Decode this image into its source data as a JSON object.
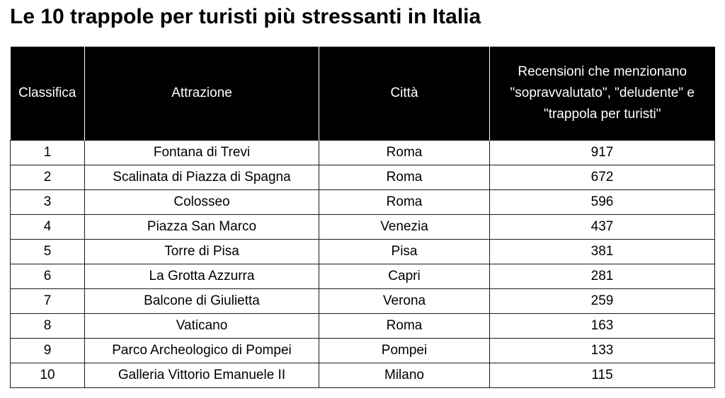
{
  "title": "Le 10 trappole per turisti più stressanti in Italia",
  "table": {
    "headers": {
      "rank": "Classifica",
      "attraction": "Attrazione",
      "city": "Città",
      "reviews_line1": "Recensioni che menzionano",
      "reviews_line2": "\"sopravvalutato\", \"deludente\" e",
      "reviews_line3": "\"trappola per turisti\""
    },
    "rows": [
      {
        "rank": "1",
        "attraction": "Fontana di Trevi",
        "city": "Roma",
        "reviews": "917"
      },
      {
        "rank": "2",
        "attraction": "Scalinata di Piazza di Spagna",
        "city": "Roma",
        "reviews": "672"
      },
      {
        "rank": "3",
        "attraction": "Colosseo",
        "city": "Roma",
        "reviews": "596"
      },
      {
        "rank": "4",
        "attraction": "Piazza San Marco",
        "city": "Venezia",
        "reviews": "437"
      },
      {
        "rank": "5",
        "attraction": "Torre di Pisa",
        "city": "Pisa",
        "reviews": "381"
      },
      {
        "rank": "6",
        "attraction": "La Grotta Azzurra",
        "city": "Capri",
        "reviews": "281"
      },
      {
        "rank": "7",
        "attraction": "Balcone di Giulietta",
        "city": "Verona",
        "reviews": "259"
      },
      {
        "rank": "8",
        "attraction": "Vaticano",
        "city": "Roma",
        "reviews": "163"
      },
      {
        "rank": "9",
        "attraction": "Parco Archeologico di Pompei",
        "city": "Pompei",
        "reviews": "133"
      },
      {
        "rank": "10",
        "attraction": "Galleria Vittorio Emanuele II",
        "city": "Milano",
        "reviews": "115"
      }
    ]
  }
}
